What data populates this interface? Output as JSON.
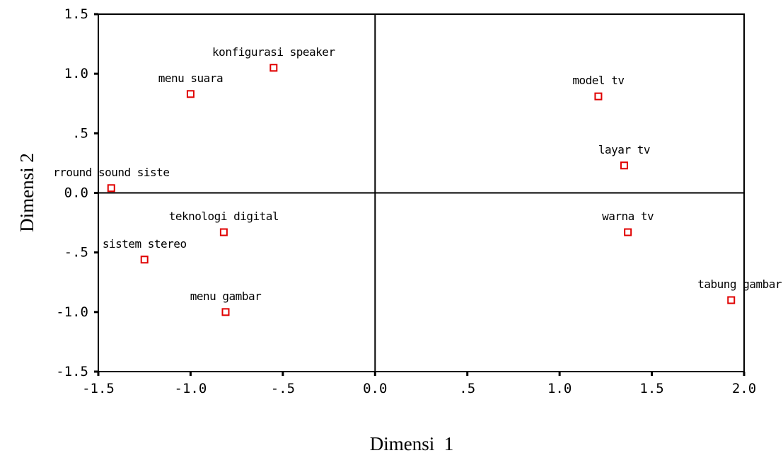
{
  "chart_data": {
    "type": "scatter",
    "xlabel": "Dimensi  1",
    "ylabel": "Dimensi 2",
    "xlim": [
      -1.5,
      2.0
    ],
    "ylim": [
      -1.5,
      1.5
    ],
    "x_ticks": [
      {
        "value": -1.5,
        "label": "-1.5"
      },
      {
        "value": -1.0,
        "label": "-1.0"
      },
      {
        "value": -0.5,
        "label": "-.5"
      },
      {
        "value": 0.0,
        "label": "0.0"
      },
      {
        "value": 0.5,
        "label": ".5"
      },
      {
        "value": 1.0,
        "label": "1.0"
      },
      {
        "value": 1.5,
        "label": "1.5"
      },
      {
        "value": 2.0,
        "label": "2.0"
      }
    ],
    "y_ticks": [
      {
        "value": 1.5,
        "label": "1.5"
      },
      {
        "value": 1.0,
        "label": "1.0"
      },
      {
        "value": 0.5,
        "label": ".5"
      },
      {
        "value": 0.0,
        "label": "0.0"
      },
      {
        "value": -0.5,
        "label": "-.5"
      },
      {
        "value": -1.0,
        "label": "-1.0"
      },
      {
        "value": -1.5,
        "label": "-1.5"
      }
    ],
    "grid": false,
    "reference_lines": {
      "x": 0,
      "y": 0
    },
    "marker_color": "#e00000",
    "points": [
      {
        "label": "konfigurasi speaker",
        "x": -0.55,
        "y": 1.05
      },
      {
        "label": "menu suara",
        "x": -1.0,
        "y": 0.83
      },
      {
        "label": "rround sound siste",
        "x": -1.43,
        "y": 0.04
      },
      {
        "label": "teknologi digital",
        "x": -0.82,
        "y": -0.33
      },
      {
        "label": "sistem stereo",
        "x": -1.25,
        "y": -0.56
      },
      {
        "label": "menu gambar",
        "x": -0.81,
        "y": -1.0
      },
      {
        "label": "model tv",
        "x": 1.21,
        "y": 0.81
      },
      {
        "label": "layar tv",
        "x": 1.35,
        "y": 0.23
      },
      {
        "label": "warna tv",
        "x": 1.37,
        "y": -0.33
      },
      {
        "label": "tabung gambar",
        "x": 1.93,
        "y": -0.9
      }
    ]
  }
}
